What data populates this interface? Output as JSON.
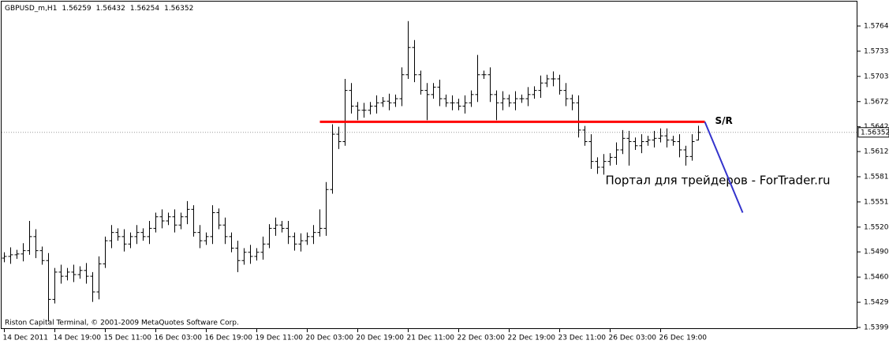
{
  "chart_data": {
    "type": "ohlc",
    "title": "GBPUSD_m,H1",
    "series": {
      "open": [
        1.5483,
        1.5485,
        1.5487,
        1.5488,
        1.5492,
        1.5509,
        1.5492,
        1.548,
        1.5433,
        1.5466,
        1.5461,
        1.5466,
        1.5463,
        1.5468,
        1.5461,
        1.5442,
        1.5476,
        1.5504,
        1.5514,
        1.5509,
        1.55,
        1.5509,
        1.5514,
        1.5509,
        1.5519,
        1.5533,
        1.5528,
        1.5533,
        1.5523,
        1.5533,
        1.5542,
        1.5514,
        1.5504,
        1.5509,
        1.5538,
        1.5523,
        1.5509,
        1.5495,
        1.548,
        1.549,
        1.5485,
        1.549,
        1.55,
        1.5519,
        1.5523,
        1.5519,
        1.5509,
        1.55,
        1.5504,
        1.5509,
        1.5514,
        1.5519,
        1.5566,
        1.5633,
        1.5624,
        1.5686,
        1.5667,
        1.5662,
        1.5662,
        1.5667,
        1.5671,
        1.5673,
        1.5671,
        1.5676,
        1.5705,
        1.5738,
        1.5705,
        1.5686,
        1.5681,
        1.569,
        1.5676,
        1.5671,
        1.5671,
        1.5667,
        1.5671,
        1.5681,
        1.5705,
        1.5705,
        1.5681,
        1.5671,
        1.5676,
        1.5671,
        1.5676,
        1.5676,
        1.5681,
        1.5686,
        1.5695,
        1.57,
        1.57,
        1.5686,
        1.5676,
        1.5671,
        1.5638,
        1.5624,
        1.56,
        1.5593,
        1.56,
        1.5605,
        1.5614,
        1.5628,
        1.5624,
        1.5619,
        1.5624,
        1.5626,
        1.5628,
        1.5631,
        1.5626,
        1.5624,
        1.5614,
        1.5606,
        1.56259
      ],
      "high": [
        1.549,
        1.5496,
        1.5493,
        1.5501,
        1.5528,
        1.5518,
        1.5497,
        1.5489,
        1.5471,
        1.5475,
        1.5471,
        1.5475,
        1.5473,
        1.5477,
        1.5466,
        1.5485,
        1.5509,
        1.5523,
        1.5519,
        1.5518,
        1.5514,
        1.5523,
        1.5519,
        1.5528,
        1.5538,
        1.5542,
        1.5538,
        1.5542,
        1.5538,
        1.5552,
        1.5547,
        1.5523,
        1.5514,
        1.5547,
        1.5543,
        1.5532,
        1.5514,
        1.5504,
        1.5495,
        1.5499,
        1.5495,
        1.5509,
        1.5524,
        1.5532,
        1.5528,
        1.5528,
        1.5514,
        1.5513,
        1.5514,
        1.5523,
        1.5542,
        1.5575,
        1.5645,
        1.5642,
        1.57,
        1.5695,
        1.5672,
        1.5671,
        1.5672,
        1.568,
        1.5678,
        1.5682,
        1.5681,
        1.5714,
        1.577,
        1.5747,
        1.571,
        1.5695,
        1.5695,
        1.5699,
        1.5681,
        1.568,
        1.5676,
        1.568,
        1.5686,
        1.5729,
        1.571,
        1.5714,
        1.5686,
        1.5685,
        1.5681,
        1.5685,
        1.5681,
        1.569,
        1.5691,
        1.5704,
        1.5705,
        1.5709,
        1.5705,
        1.5695,
        1.5681,
        1.568,
        1.5643,
        1.5633,
        1.5605,
        1.5609,
        1.561,
        1.5623,
        1.5638,
        1.5637,
        1.5629,
        1.5633,
        1.5631,
        1.5637,
        1.564,
        1.564,
        1.5631,
        1.5633,
        1.5619,
        1.5633,
        1.56432
      ],
      "low": [
        1.5478,
        1.5476,
        1.5482,
        1.5479,
        1.5487,
        1.5483,
        1.5475,
        1.5406,
        1.5428,
        1.5452,
        1.5456,
        1.5454,
        1.5458,
        1.5452,
        1.543,
        1.5433,
        1.5471,
        1.5495,
        1.5504,
        1.5491,
        1.5495,
        1.55,
        1.5504,
        1.55,
        1.5514,
        1.5519,
        1.5523,
        1.5514,
        1.5518,
        1.5524,
        1.5509,
        1.5495,
        1.5499,
        1.55,
        1.5518,
        1.55,
        1.549,
        1.5466,
        1.5475,
        1.5476,
        1.548,
        1.5481,
        1.5495,
        1.551,
        1.5514,
        1.55,
        1.5492,
        1.5491,
        1.5499,
        1.55,
        1.5509,
        1.551,
        1.5561,
        1.5615,
        1.5619,
        1.5658,
        1.565,
        1.5653,
        1.5657,
        1.5658,
        1.5666,
        1.5662,
        1.5666,
        1.5667,
        1.57,
        1.5696,
        1.5681,
        1.565,
        1.5676,
        1.5667,
        1.5666,
        1.5662,
        1.5662,
        1.5658,
        1.5666,
        1.5672,
        1.57,
        1.5672,
        1.565,
        1.5662,
        1.5666,
        1.5662,
        1.5671,
        1.5667,
        1.5676,
        1.5677,
        1.569,
        1.5691,
        1.5681,
        1.5667,
        1.5662,
        1.5629,
        1.5619,
        1.5591,
        1.5585,
        1.5584,
        1.5595,
        1.5596,
        1.5609,
        1.5595,
        1.5614,
        1.561,
        1.5619,
        1.5617,
        1.5623,
        1.5617,
        1.5619,
        1.5605,
        1.5595,
        1.5601,
        1.56254
      ],
      "close": [
        1.5485,
        1.5487,
        1.5488,
        1.5492,
        1.5509,
        1.5492,
        1.548,
        1.5433,
        1.5466,
        1.5461,
        1.5466,
        1.5463,
        1.5468,
        1.5461,
        1.5442,
        1.5476,
        1.5504,
        1.5514,
        1.5509,
        1.55,
        1.5509,
        1.5514,
        1.5509,
        1.5519,
        1.5533,
        1.5528,
        1.5533,
        1.5523,
        1.5533,
        1.5542,
        1.5514,
        1.5504,
        1.5509,
        1.5538,
        1.5523,
        1.5509,
        1.5495,
        1.548,
        1.549,
        1.5485,
        1.549,
        1.55,
        1.5519,
        1.5523,
        1.5519,
        1.5509,
        1.55,
        1.5504,
        1.5509,
        1.5514,
        1.5519,
        1.5566,
        1.5633,
        1.5624,
        1.5686,
        1.5667,
        1.5662,
        1.5662,
        1.5667,
        1.5671,
        1.5673,
        1.5671,
        1.5676,
        1.5705,
        1.5738,
        1.5705,
        1.5686,
        1.5681,
        1.569,
        1.5676,
        1.5671,
        1.5671,
        1.5667,
        1.5671,
        1.5681,
        1.5705,
        1.5705,
        1.5681,
        1.5671,
        1.5676,
        1.5671,
        1.5676,
        1.5676,
        1.5681,
        1.5686,
        1.5695,
        1.57,
        1.57,
        1.5686,
        1.5676,
        1.5671,
        1.5638,
        1.5624,
        1.56,
        1.5593,
        1.56,
        1.5605,
        1.5614,
        1.5628,
        1.5624,
        1.5619,
        1.5624,
        1.5626,
        1.5628,
        1.5631,
        1.5626,
        1.5624,
        1.5614,
        1.5606,
        1.5624,
        1.56352
      ],
      "color": "#000000"
    },
    "ylim": [
      1.53971,
      1.57936
    ],
    "yticks": [
      {
        "value": 1.5399,
        "label": "1.53990"
      },
      {
        "value": 1.54295,
        "label": "1.54295"
      },
      {
        "value": 1.546,
        "label": "1.54600"
      },
      {
        "value": 1.54905,
        "label": "1.54905"
      },
      {
        "value": 1.55205,
        "label": "1.55205"
      },
      {
        "value": 1.5551,
        "label": "1.55510"
      },
      {
        "value": 1.55815,
        "label": "1.55815"
      },
      {
        "value": 1.5612,
        "label": "1.56120"
      },
      {
        "value": 1.5642,
        "label": "1.56420"
      },
      {
        "value": 1.56725,
        "label": "1.56725"
      },
      {
        "value": 1.5703,
        "label": "1.57030"
      },
      {
        "value": 1.57335,
        "label": "1.57335"
      },
      {
        "value": 1.5764,
        "label": "1.57640"
      }
    ],
    "xticks": [
      {
        "value": 0,
        "label": "14 Dec 2011"
      },
      {
        "value": 8,
        "label": "14 Dec 19:00"
      },
      {
        "value": 16,
        "label": "15 Dec 11:00"
      },
      {
        "value": 24,
        "label": "16 Dec 03:00"
      },
      {
        "value": 32,
        "label": "16 Dec 19:00"
      },
      {
        "value": 40,
        "label": "19 Dec 11:00"
      },
      {
        "value": 48,
        "label": "20 Dec 03:00"
      },
      {
        "value": 56,
        "label": "20 Dec 19:00"
      },
      {
        "value": 64,
        "label": "21 Dec 11:00"
      },
      {
        "value": 72,
        "label": "22 Dec 03:00"
      },
      {
        "value": 80,
        "label": "22 Dec 19:00"
      },
      {
        "value": 88,
        "label": "23 Dec 11:00"
      },
      {
        "value": 96,
        "label": "26 Dec 03:00"
      },
      {
        "value": 104,
        "label": "26 Dec 19:00"
      }
    ],
    "sr_line": {
      "label": "S/R",
      "x": [
        50,
        111
      ],
      "y": 1.5648,
      "color": "#ff0000"
    },
    "trend_line": {
      "x": [
        111,
        117
      ],
      "y": [
        1.5648,
        1.5538
      ],
      "color": "#3333cc"
    },
    "footer": "Riston Capital Terminal, © 2001-2009 MetaQuotes Software Corp.",
    "watermark": "Портал для трейдеров - ForTrader.ru"
  }
}
